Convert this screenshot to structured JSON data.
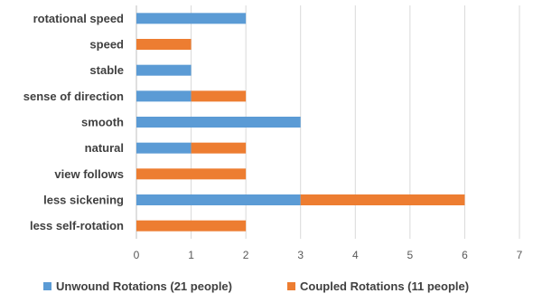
{
  "chart_data": {
    "type": "bar",
    "orientation": "horizontal",
    "stacked": true,
    "categories": [
      "rotational speed",
      "speed",
      "stable",
      "sense of direction",
      "smooth",
      "natural",
      "view follows",
      "less sickening",
      "less self-rotation"
    ],
    "series": [
      {
        "name": "Unwound Rotations (21 people)",
        "color": "#5B9BD5",
        "values": [
          2,
          0,
          1,
          1,
          3,
          1,
          0,
          3,
          0
        ]
      },
      {
        "name": "Coupled Rotations (11 people)",
        "color": "#ED7D31",
        "values": [
          0,
          1,
          0,
          1,
          0,
          1,
          2,
          3,
          2
        ]
      }
    ],
    "xlim": [
      0,
      7
    ],
    "xticks": [
      "0",
      "1",
      "2",
      "3",
      "4",
      "5",
      "6",
      "7"
    ],
    "grid": true,
    "legend_position": "bottom"
  }
}
